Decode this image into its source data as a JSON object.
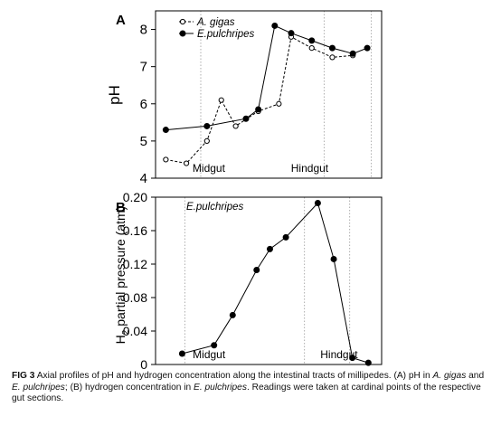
{
  "chart_data": [
    {
      "type": "line",
      "panel_label": "A",
      "ylabel": "pH",
      "ylim": [
        4,
        8.5
      ],
      "yticks": [
        "4",
        "5",
        "6",
        "7",
        "8"
      ],
      "x_units": "position along intestinal tract (arbitrary)",
      "section_labels": [
        "Midgut",
        "Hindgut"
      ],
      "legend_placement": "top-left",
      "series": [
        {
          "name": "A. gigas",
          "marker": "open-circle",
          "dashed": true,
          "x": [
            0.5,
            1.5,
            2.5,
            3.2,
            3.9,
            5.0,
            6.0,
            6.6,
            7.6,
            8.6,
            9.6
          ],
          "values": [
            4.5,
            4.4,
            5.0,
            6.1,
            5.4,
            5.8,
            6.0,
            7.8,
            7.5,
            7.25,
            7.3
          ]
        },
        {
          "name": "E.pulchripes",
          "marker": "filled-circle",
          "dashed": false,
          "x": [
            0.5,
            2.5,
            4.4,
            5.0,
            5.8,
            6.6,
            7.6,
            8.6,
            9.6,
            10.3
          ],
          "values": [
            5.3,
            5.4,
            5.6,
            5.85,
            8.1,
            7.9,
            7.7,
            7.5,
            7.35,
            7.5
          ]
        }
      ]
    },
    {
      "type": "line",
      "panel_label": "B",
      "ylabel": "H2 partial pressure (atm)",
      "ylim": [
        0,
        0.2
      ],
      "yticks": [
        "0",
        "0.04",
        "0.08",
        "0.12",
        "0.16",
        "0.20"
      ],
      "x_units": "position along intestinal tract (arbitrary)",
      "section_labels": [
        "Midgut",
        "Hindgut"
      ],
      "series_label": "E.pulchripes",
      "series": [
        {
          "name": "E.pulchripes",
          "marker": "filled-circle",
          "dashed": false,
          "x": [
            0.0,
            1.2,
            1.9,
            2.8,
            3.3,
            3.9,
            5.1,
            5.7,
            6.4,
            7.0
          ],
          "values": [
            0.013,
            0.023,
            0.059,
            0.113,
            0.138,
            0.152,
            0.193,
            0.126,
            0.008,
            0.002
          ]
        }
      ]
    }
  ],
  "caption": {
    "fig_label": "FIG 3",
    "segments": [
      {
        "t": "Axial profiles of pH and hydrogen concentration along the intestinal tracts of millipedes. (A) pH in ",
        "i": false
      },
      {
        "t": "A. gigas",
        "i": true
      },
      {
        "t": " and ",
        "i": false
      },
      {
        "t": "E. pulchripes",
        "i": true
      },
      {
        "t": "; (B) hydrogen concentration in ",
        "i": false
      },
      {
        "t": "E. pulchripes",
        "i": true
      },
      {
        "t": ". Readings were taken at cardinal points of the respective gut sections.",
        "i": false
      }
    ]
  },
  "colors": {
    "line": "#000000",
    "divider": "#9a9a9a",
    "axis": "#000000"
  }
}
